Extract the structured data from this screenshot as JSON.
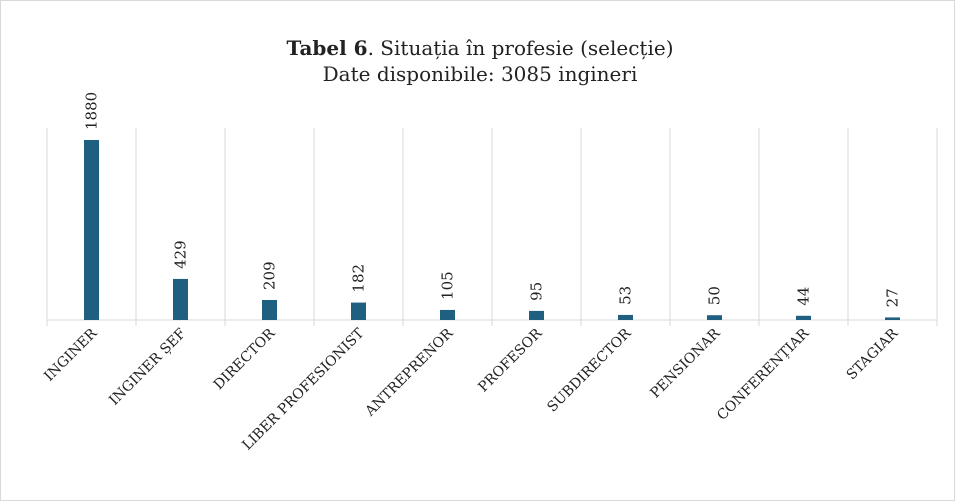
{
  "chart_data": {
    "type": "bar",
    "title": [
      "Tabel 6",
      ". Situația în profesie (selecție)"
    ],
    "subtitle": "Date disponibile: 3085 ingineri",
    "categories": [
      "INGINER",
      "INGINER ȘEF",
      "DIRECTOR",
      "LIBER PROFESIONIST",
      "ANTREPRENOR",
      "PROFESOR",
      "SUBDIRECTOR",
      "PENSIONAR",
      "CONFERENȚIAR",
      "STAGIAR"
    ],
    "values": [
      1880,
      429,
      209,
      182,
      105,
      95,
      53,
      50,
      44,
      27
    ],
    "color": "#1f6081"
  }
}
